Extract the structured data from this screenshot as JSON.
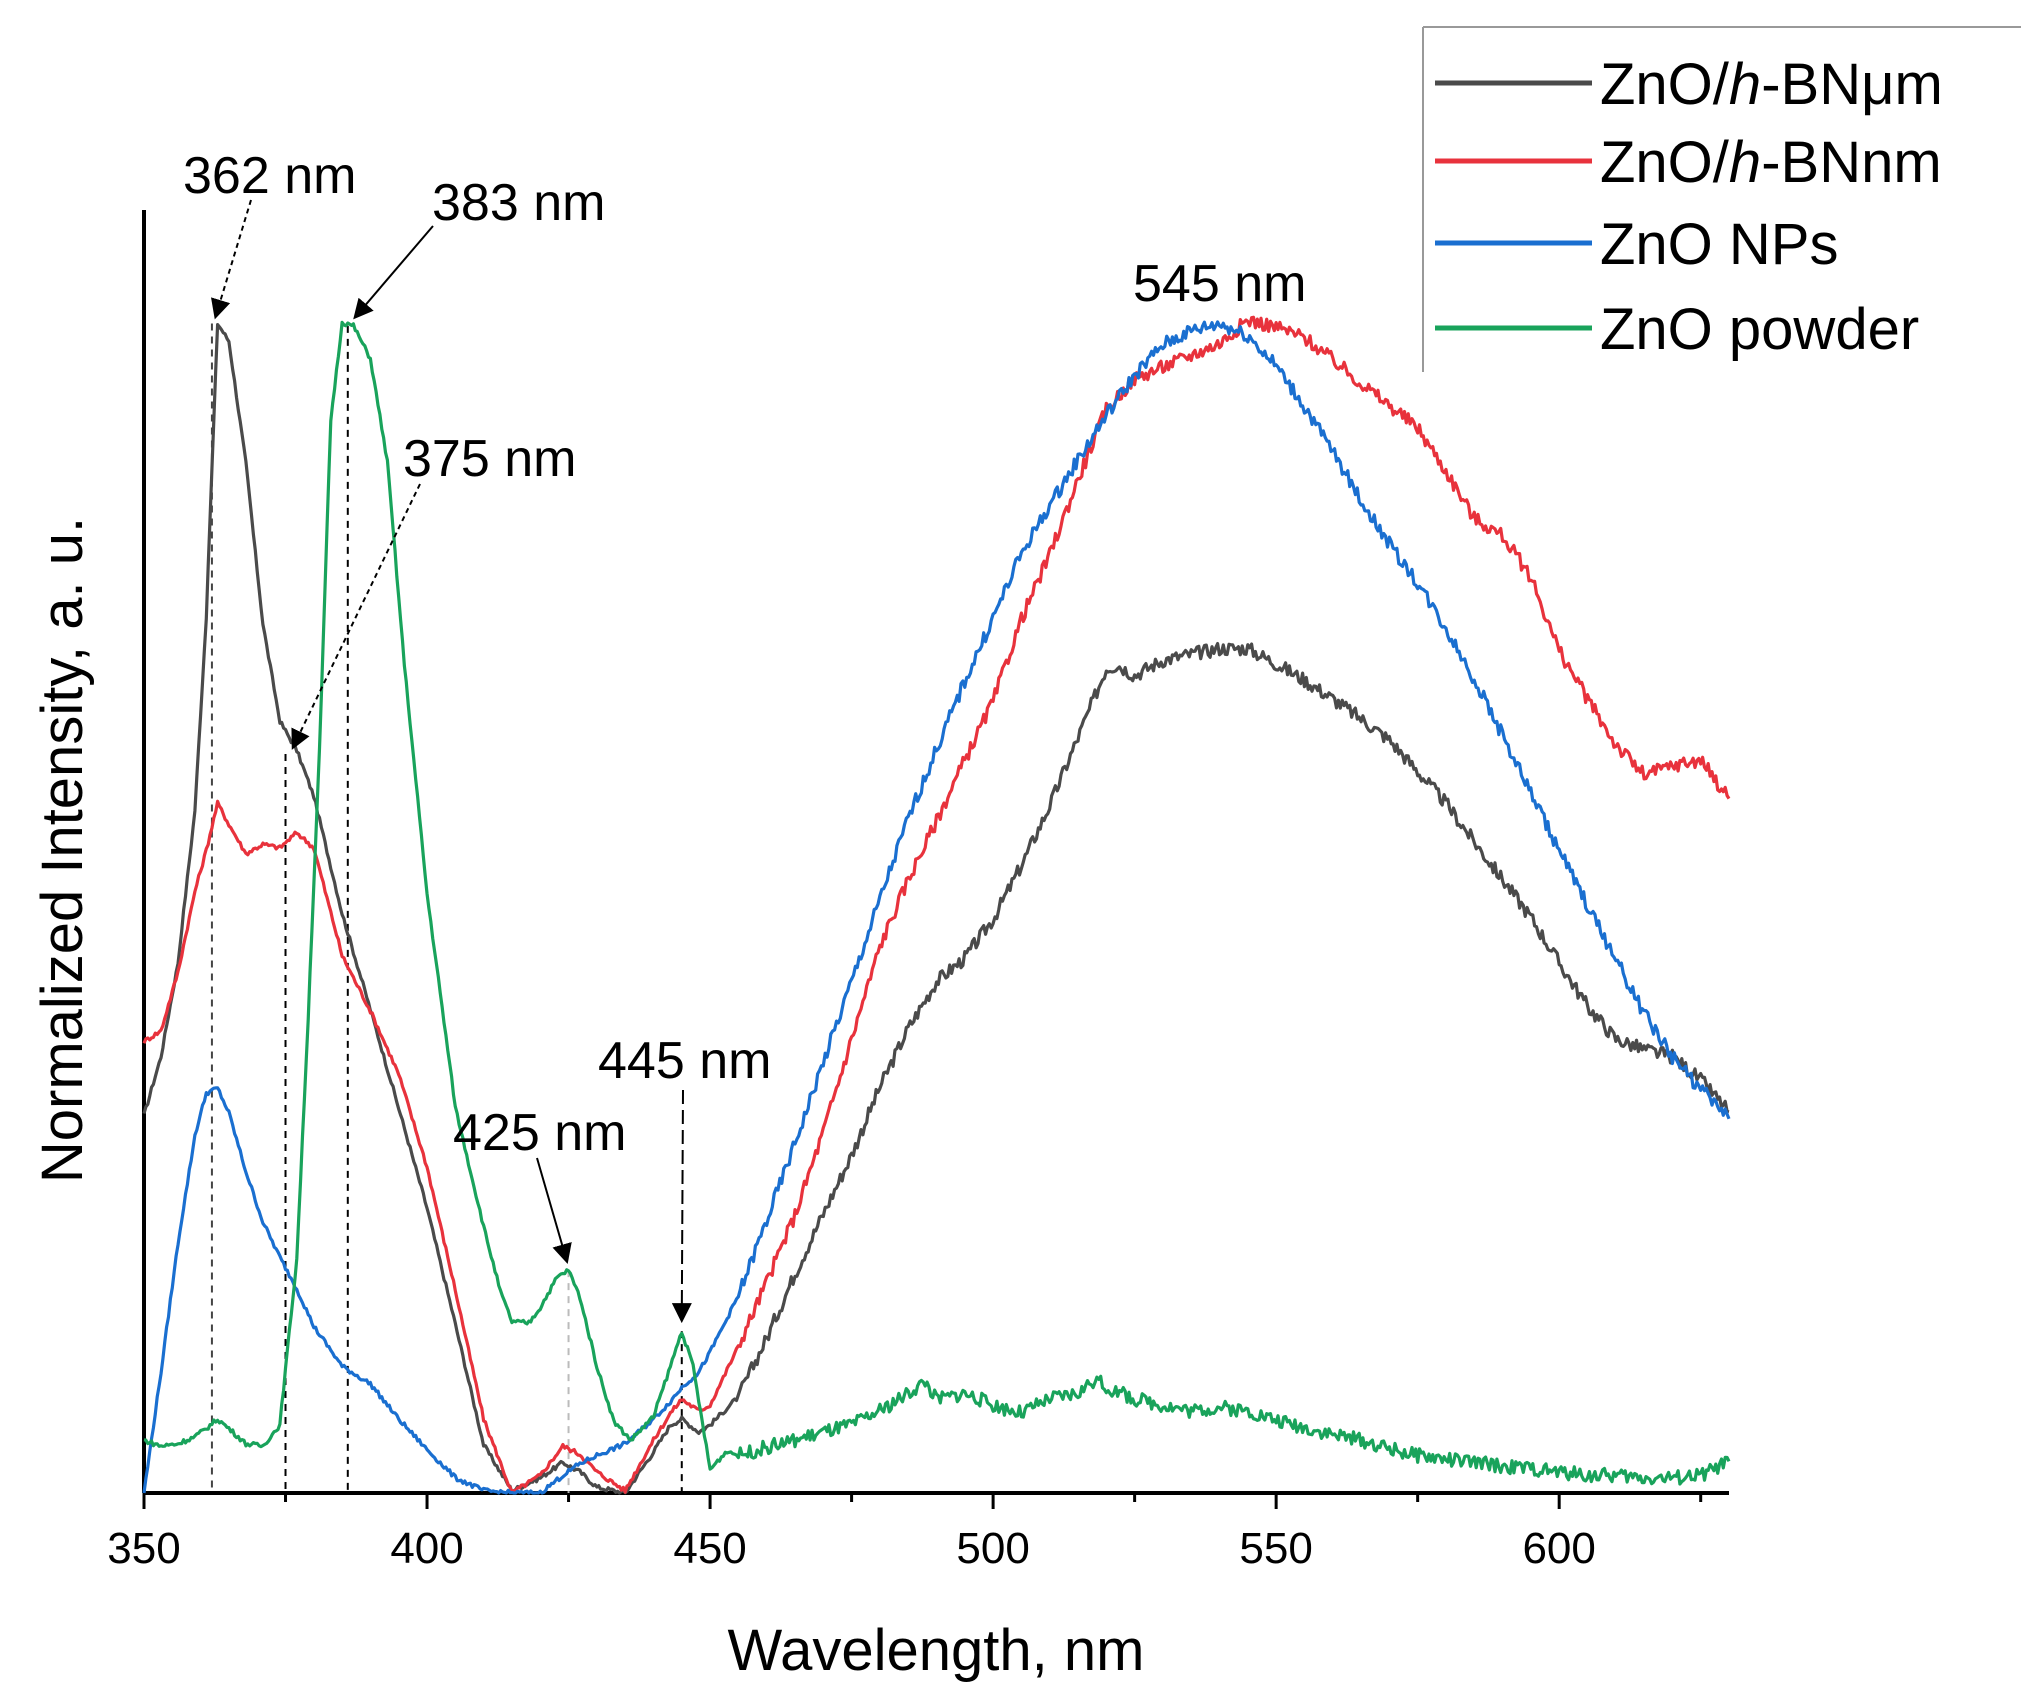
{
  "chart_data": {
    "type": "line",
    "title": "",
    "xlabel": "Wavelength, nm",
    "ylabel": "Normalized Intensity, a. u.",
    "xlim": [
      350,
      630
    ],
    "ylim": [
      0,
      1
    ],
    "x_ticks": [
      350,
      400,
      450,
      500,
      550,
      600
    ],
    "grid": false,
    "legend_position": "top-right",
    "series": [
      {
        "name_prefix": "ZnO/",
        "name_italic": "h",
        "name_suffix": "-BNμm",
        "color": "#4a4a4a",
        "points": [
          [
            350,
            0.322
          ],
          [
            353,
            0.372
          ],
          [
            356,
            0.452
          ],
          [
            359,
            0.582
          ],
          [
            361,
            0.747
          ],
          [
            363,
            0.997
          ],
          [
            365,
            0.982
          ],
          [
            368,
            0.878
          ],
          [
            371,
            0.741
          ],
          [
            374,
            0.658
          ],
          [
            377,
            0.633
          ],
          [
            380,
            0.594
          ],
          [
            385,
            0.494
          ],
          [
            390,
            0.412
          ],
          [
            395,
            0.328
          ],
          [
            400,
            0.243
          ],
          [
            405,
            0.144
          ],
          [
            410,
            0.041
          ],
          [
            415,
            0.002
          ],
          [
            420,
            0.013
          ],
          [
            424,
            0.026
          ],
          [
            427,
            0.018
          ],
          [
            430,
            0.005
          ],
          [
            435,
            0.0
          ],
          [
            440,
            0.035
          ],
          [
            443,
            0.058
          ],
          [
            445,
            0.063
          ],
          [
            448,
            0.052
          ],
          [
            450,
            0.058
          ],
          [
            455,
            0.082
          ],
          [
            460,
            0.132
          ],
          [
            465,
            0.187
          ],
          [
            470,
            0.238
          ],
          [
            475,
            0.288
          ],
          [
            480,
            0.346
          ],
          [
            485,
            0.396
          ],
          [
            490,
            0.436
          ],
          [
            495,
            0.456
          ],
          [
            500,
            0.489
          ],
          [
            505,
            0.535
          ],
          [
            510,
            0.586
          ],
          [
            515,
            0.644
          ],
          [
            520,
            0.703
          ],
          [
            522,
            0.706
          ],
          [
            525,
            0.697
          ],
          [
            530,
            0.71
          ],
          [
            535,
            0.715
          ],
          [
            540,
            0.72
          ],
          [
            545,
            0.72
          ],
          [
            550,
            0.707
          ],
          [
            555,
            0.693
          ],
          [
            560,
            0.677
          ],
          [
            565,
            0.66
          ],
          [
            570,
            0.642
          ],
          [
            575,
            0.615
          ],
          [
            580,
            0.588
          ],
          [
            585,
            0.555
          ],
          [
            590,
            0.523
          ],
          [
            595,
            0.491
          ],
          [
            600,
            0.452
          ],
          [
            605,
            0.415
          ],
          [
            610,
            0.387
          ],
          [
            615,
            0.378
          ],
          [
            620,
            0.372
          ],
          [
            625,
            0.352
          ],
          [
            630,
            0.325
          ]
        ]
      },
      {
        "name_prefix": "ZnO/",
        "name_italic": "h",
        "name_suffix": "-BNnm",
        "color": "#e8323c",
        "points": [
          [
            350,
            0.385
          ],
          [
            353,
            0.394
          ],
          [
            356,
            0.444
          ],
          [
            359,
            0.513
          ],
          [
            361,
            0.548
          ],
          [
            363,
            0.588
          ],
          [
            365,
            0.57
          ],
          [
            368,
            0.545
          ],
          [
            371,
            0.553
          ],
          [
            374,
            0.55
          ],
          [
            377,
            0.563
          ],
          [
            380,
            0.55
          ],
          [
            385,
            0.458
          ],
          [
            390,
            0.411
          ],
          [
            395,
            0.357
          ],
          [
            400,
            0.278
          ],
          [
            405,
            0.173
          ],
          [
            410,
            0.063
          ],
          [
            415,
            0.0
          ],
          [
            420,
            0.015
          ],
          [
            424,
            0.04
          ],
          [
            427,
            0.033
          ],
          [
            430,
            0.018
          ],
          [
            435,
            0.002
          ],
          [
            440,
            0.045
          ],
          [
            443,
            0.068
          ],
          [
            445,
            0.08
          ],
          [
            448,
            0.07
          ],
          [
            450,
            0.075
          ],
          [
            455,
            0.125
          ],
          [
            460,
            0.18
          ],
          [
            465,
            0.237
          ],
          [
            470,
            0.308
          ],
          [
            475,
            0.387
          ],
          [
            480,
            0.466
          ],
          [
            485,
            0.523
          ],
          [
            490,
            0.573
          ],
          [
            495,
            0.625
          ],
          [
            500,
            0.675
          ],
          [
            505,
            0.745
          ],
          [
            510,
            0.8
          ],
          [
            515,
            0.864
          ],
          [
            520,
            0.924
          ],
          [
            525,
            0.95
          ],
          [
            530,
            0.96
          ],
          [
            535,
            0.97
          ],
          [
            540,
            0.98
          ],
          [
            545,
            1.0
          ],
          [
            550,
            0.994
          ],
          [
            555,
            0.985
          ],
          [
            560,
            0.966
          ],
          [
            565,
            0.946
          ],
          [
            570,
            0.927
          ],
          [
            575,
            0.908
          ],
          [
            580,
            0.871
          ],
          [
            585,
            0.831
          ],
          [
            590,
            0.816
          ],
          [
            595,
            0.781
          ],
          [
            600,
            0.718
          ],
          [
            605,
            0.677
          ],
          [
            610,
            0.638
          ],
          [
            615,
            0.612
          ],
          [
            620,
            0.62
          ],
          [
            625,
            0.625
          ],
          [
            630,
            0.592
          ]
        ]
      },
      {
        "name_prefix": "ZnO NPs",
        "name_italic": "",
        "name_suffix": "",
        "color": "#1a6fd0",
        "points": [
          [
            350,
            0.0
          ],
          [
            353,
            0.103
          ],
          [
            356,
            0.213
          ],
          [
            359,
            0.305
          ],
          [
            361,
            0.341
          ],
          [
            363,
            0.345
          ],
          [
            365,
            0.324
          ],
          [
            368,
            0.274
          ],
          [
            371,
            0.231
          ],
          [
            374,
            0.201
          ],
          [
            377,
            0.174
          ],
          [
            380,
            0.142
          ],
          [
            385,
            0.108
          ],
          [
            390,
            0.093
          ],
          [
            395,
            0.063
          ],
          [
            400,
            0.037
          ],
          [
            405,
            0.013
          ],
          [
            410,
            0.002
          ],
          [
            415,
            0.0
          ],
          [
            420,
            0.0
          ],
          [
            424,
            0.015
          ],
          [
            427,
            0.025
          ],
          [
            430,
            0.032
          ],
          [
            435,
            0.042
          ],
          [
            440,
            0.063
          ],
          [
            443,
            0.078
          ],
          [
            445,
            0.09
          ],
          [
            448,
            0.103
          ],
          [
            450,
            0.12
          ],
          [
            455,
            0.168
          ],
          [
            460,
            0.232
          ],
          [
            465,
            0.298
          ],
          [
            470,
            0.367
          ],
          [
            475,
            0.436
          ],
          [
            480,
            0.506
          ],
          [
            485,
            0.575
          ],
          [
            490,
            0.634
          ],
          [
            495,
            0.692
          ],
          [
            500,
            0.746
          ],
          [
            505,
            0.801
          ],
          [
            510,
            0.842
          ],
          [
            515,
            0.881
          ],
          [
            520,
            0.919
          ],
          [
            525,
            0.953
          ],
          [
            530,
            0.979
          ],
          [
            535,
            0.991
          ],
          [
            540,
            0.997
          ],
          [
            545,
            0.987
          ],
          [
            550,
            0.961
          ],
          [
            555,
            0.926
          ],
          [
            560,
            0.888
          ],
          [
            565,
            0.846
          ],
          [
            570,
            0.809
          ],
          [
            575,
            0.776
          ],
          [
            580,
            0.737
          ],
          [
            585,
            0.694
          ],
          [
            590,
            0.646
          ],
          [
            595,
            0.597
          ],
          [
            600,
            0.548
          ],
          [
            605,
            0.501
          ],
          [
            610,
            0.455
          ],
          [
            615,
            0.409
          ],
          [
            620,
            0.372
          ],
          [
            625,
            0.344
          ],
          [
            630,
            0.319
          ]
        ]
      },
      {
        "name_prefix": "ZnO powder",
        "name_italic": "",
        "name_suffix": "",
        "color": "#19a35b",
        "points": [
          [
            350,
            0.045
          ],
          [
            353,
            0.04
          ],
          [
            356,
            0.042
          ],
          [
            359,
            0.048
          ],
          [
            361,
            0.055
          ],
          [
            363,
            0.063
          ],
          [
            365,
            0.055
          ],
          [
            368,
            0.042
          ],
          [
            371,
            0.04
          ],
          [
            374,
            0.058
          ],
          [
            377,
            0.2
          ],
          [
            379,
            0.405
          ],
          [
            381,
            0.633
          ],
          [
            383,
            0.915
          ],
          [
            385,
            0.998
          ],
          [
            387,
            0.995
          ],
          [
            390,
            0.967
          ],
          [
            393,
            0.879
          ],
          [
            396,
            0.706
          ],
          [
            400,
            0.511
          ],
          [
            405,
            0.329
          ],
          [
            410,
            0.227
          ],
          [
            413,
            0.171
          ],
          [
            415,
            0.146
          ],
          [
            418,
            0.145
          ],
          [
            420,
            0.158
          ],
          [
            423,
            0.184
          ],
          [
            425,
            0.19
          ],
          [
            427,
            0.167
          ],
          [
            430,
            0.108
          ],
          [
            433,
            0.061
          ],
          [
            436,
            0.045
          ],
          [
            440,
            0.065
          ],
          [
            443,
            0.108
          ],
          [
            445,
            0.138
          ],
          [
            447,
            0.108
          ],
          [
            450,
            0.02
          ],
          [
            453,
            0.036
          ],
          [
            455,
            0.032
          ],
          [
            460,
            0.039
          ],
          [
            465,
            0.045
          ],
          [
            470,
            0.052
          ],
          [
            475,
            0.058
          ],
          [
            480,
            0.07
          ],
          [
            485,
            0.085
          ],
          [
            488,
            0.095
          ],
          [
            490,
            0.08
          ],
          [
            495,
            0.085
          ],
          [
            500,
            0.075
          ],
          [
            505,
            0.068
          ],
          [
            510,
            0.08
          ],
          [
            515,
            0.085
          ],
          [
            518,
            0.097
          ],
          [
            520,
            0.09
          ],
          [
            525,
            0.08
          ],
          [
            530,
            0.075
          ],
          [
            535,
            0.07
          ],
          [
            540,
            0.073
          ],
          [
            545,
            0.07
          ],
          [
            550,
            0.062
          ],
          [
            555,
            0.056
          ],
          [
            560,
            0.05
          ],
          [
            565,
            0.045
          ],
          [
            570,
            0.038
          ],
          [
            575,
            0.032
          ],
          [
            580,
            0.029
          ],
          [
            585,
            0.026
          ],
          [
            590,
            0.023
          ],
          [
            595,
            0.021
          ],
          [
            600,
            0.018
          ],
          [
            605,
            0.015
          ],
          [
            610,
            0.015
          ],
          [
            615,
            0.013
          ],
          [
            620,
            0.013
          ],
          [
            625,
            0.015
          ],
          [
            630,
            0.027
          ]
        ]
      }
    ],
    "annotations": [
      {
        "text": "362 nm",
        "x": 362,
        "y": 0.997
      },
      {
        "text": "383 nm",
        "x": 386,
        "y": 0.998
      },
      {
        "text": "375 nm",
        "x": 375,
        "y": 0.64
      },
      {
        "text": "425 nm",
        "x": 425,
        "y": 0.19
      },
      {
        "text": "445 nm",
        "x": 445,
        "y": 0.138
      },
      {
        "text": "545 nm",
        "x": 545,
        "y": 1.0
      }
    ]
  }
}
